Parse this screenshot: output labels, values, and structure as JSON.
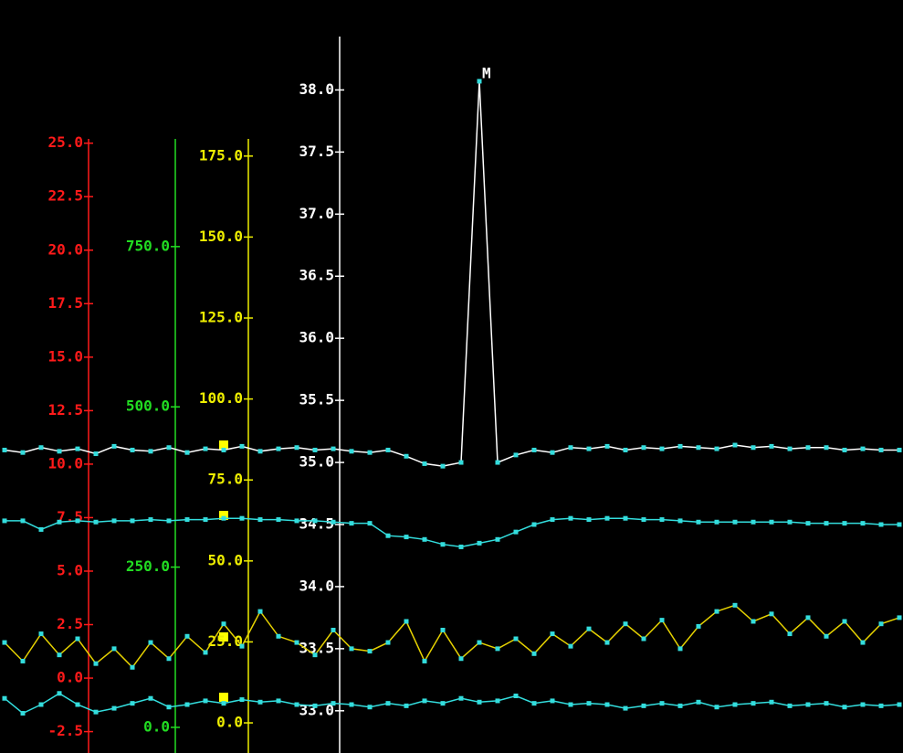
{
  "chart_data": {
    "type": "line",
    "annotation": "M",
    "axes": [
      {
        "color": "#ff1a1a",
        "ylim": [
          -3.5,
          25.2
        ],
        "yticks": [
          {
            "value": -2.5,
            "label": "-2.5"
          },
          {
            "value": 0,
            "label": "0.0"
          },
          {
            "value": 2.5,
            "label": "2.5"
          },
          {
            "value": 5,
            "label": "5.0"
          },
          {
            "value": 7.5,
            "label": "7.5"
          },
          {
            "value": 10,
            "label": "10.0"
          },
          {
            "value": 12.5,
            "label": "12.5"
          },
          {
            "value": 15,
            "label": "15.0"
          },
          {
            "value": 17.5,
            "label": "17.5"
          },
          {
            "value": 20,
            "label": "20.0"
          },
          {
            "value": 22.5,
            "label": "22.5"
          },
          {
            "value": 25,
            "label": "25.0"
          }
        ]
      },
      {
        "color": "#22dd22",
        "ylim": [
          -40,
          918
        ],
        "yticks": [
          {
            "value": 0,
            "label": "0.0"
          },
          {
            "value": 250,
            "label": "250.0"
          },
          {
            "value": 500,
            "label": "500.0"
          },
          {
            "value": 750,
            "label": "750.0"
          }
        ]
      },
      {
        "color": "#eeee00",
        "ylim": [
          -9.3,
          180.3
        ],
        "yticks": [
          {
            "value": 0,
            "label": "0.0"
          },
          {
            "value": 25,
            "label": "25.0"
          },
          {
            "value": 50,
            "label": "50.0"
          },
          {
            "value": 75,
            "label": "75.0"
          },
          {
            "value": 100,
            "label": "100.0"
          },
          {
            "value": 125,
            "label": "125.0"
          },
          {
            "value": 150,
            "label": "150.0"
          },
          {
            "value": 175,
            "label": "175.0"
          }
        ]
      },
      {
        "color": "#ffffff",
        "ylim": [
          32.66,
          38.43
        ],
        "yticks": [
          {
            "value": 33,
            "label": "33.0"
          },
          33.5,
          {
            "value": 34,
            "label": "34.0"
          },
          34.5,
          {
            "value": 35,
            "label": "35.0"
          },
          35.5,
          {
            "value": 36,
            "label": "36.0"
          },
          36.5,
          {
            "value": 37,
            "label": "37.0"
          },
          37.5,
          {
            "value": 38,
            "label": "38.0"
          }
        ]
      }
    ],
    "series": [
      {
        "color": "#ffffff",
        "marker_color": "#33dddd",
        "axis": 3,
        "values": [
          35.1,
          35.08,
          35.12,
          35.09,
          35.11,
          35.07,
          35.13,
          35.1,
          35.09,
          35.12,
          35.08,
          35.11,
          35.1,
          35.13,
          35.09,
          35.11,
          35.12,
          35.1,
          35.11,
          35.09,
          35.08,
          35.1,
          35.05,
          34.99,
          34.97,
          35.0,
          38.07,
          35.0,
          35.06,
          35.1,
          35.08,
          35.12,
          35.11,
          35.13,
          35.1,
          35.12,
          35.11,
          35.13,
          35.12,
          35.11,
          35.14,
          35.12,
          35.13,
          35.11,
          35.12,
          35.12,
          35.1,
          35.11,
          35.1,
          35.1
        ]
      },
      {
        "color": "#33dddd",
        "marker_color": "#33dddd",
        "axis": 3,
        "values": [
          34.53,
          34.53,
          34.46,
          34.52,
          34.53,
          34.52,
          34.53,
          34.53,
          34.54,
          34.53,
          34.54,
          34.54,
          34.55,
          34.55,
          34.54,
          34.54,
          34.53,
          34.53,
          34.52,
          34.51,
          34.51,
          34.41,
          34.4,
          34.38,
          34.34,
          34.32,
          34.35,
          34.38,
          34.44,
          34.5,
          34.54,
          34.55,
          34.54,
          34.55,
          34.55,
          34.54,
          34.54,
          34.53,
          34.52,
          34.52,
          34.52,
          34.52,
          34.52,
          34.52,
          34.51,
          34.51,
          34.51,
          34.51,
          34.5,
          34.5
        ]
      },
      {
        "color": "#e6d200",
        "marker_color": "#33dddd",
        "axis": 3,
        "values": [
          33.55,
          33.4,
          33.62,
          33.45,
          33.58,
          33.38,
          33.5,
          33.35,
          33.55,
          33.42,
          33.6,
          33.47,
          33.7,
          33.52,
          33.8,
          33.6,
          33.55,
          33.45,
          33.65,
          33.5,
          33.48,
          33.55,
          33.72,
          33.4,
          33.65,
          33.42,
          33.55,
          33.5,
          33.58,
          33.46,
          33.62,
          33.52,
          33.66,
          33.55,
          33.7,
          33.58,
          33.73,
          33.5,
          33.68,
          33.8,
          33.85,
          33.72,
          33.78,
          33.62,
          33.75,
          33.6,
          33.72,
          33.55,
          33.7,
          33.75
        ]
      },
      {
        "color": "#33dddd",
        "marker_color": "#33dddd",
        "axis": 3,
        "values": [
          33.1,
          32.98,
          33.05,
          33.14,
          33.05,
          32.99,
          33.02,
          33.06,
          33.1,
          33.03,
          33.05,
          33.08,
          33.06,
          33.09,
          33.07,
          33.08,
          33.05,
          33.04,
          33.06,
          33.05,
          33.03,
          33.06,
          33.04,
          33.08,
          33.06,
          33.1,
          33.07,
          33.08,
          33.12,
          33.06,
          33.08,
          33.05,
          33.06,
          33.05,
          33.02,
          33.04,
          33.06,
          33.04,
          33.07,
          33.03,
          33.05,
          33.06,
          33.07,
          33.04,
          33.05,
          33.06,
          33.03,
          33.05,
          33.04,
          33.05
        ]
      }
    ]
  }
}
